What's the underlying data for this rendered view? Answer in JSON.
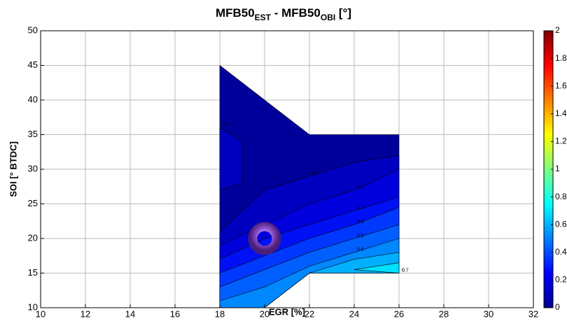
{
  "chart_data": {
    "type": "contourf",
    "title": [
      "MFB50",
      "EST",
      " - MFB50",
      "OBI",
      " [°]"
    ],
    "xlabel": "EGR [%]",
    "ylabel": "SOI [° BTDC]",
    "xlim": [
      10,
      32
    ],
    "ylim": [
      10,
      50
    ],
    "xticks": [
      10,
      12,
      14,
      16,
      18,
      20,
      22,
      24,
      26,
      28,
      30,
      32
    ],
    "yticks": [
      10,
      15,
      20,
      25,
      30,
      35,
      40,
      45,
      50
    ],
    "grid": true,
    "clim": [
      0,
      2
    ],
    "cticks": [
      0,
      0.2,
      0.4,
      0.6,
      0.8,
      1,
      1.2,
      1.4,
      1.6,
      1.8,
      2
    ],
    "colormap": [
      "#00008f",
      "#0000ff",
      "#0080ff",
      "#00ffff",
      "#80ff80",
      "#ffff00",
      "#ff8000",
      "#ff0000",
      "#800000"
    ],
    "contours": [
      {
        "level": 0,
        "color": "#00009a",
        "x": [
          18,
          22,
          26,
          26,
          22,
          20,
          18
        ],
        "y": [
          45,
          35,
          35,
          15,
          15,
          10,
          10
        ]
      },
      {
        "level": 0.1,
        "color": "#0000c0",
        "x": [
          18,
          19,
          19,
          18
        ],
        "y": [
          27,
          28,
          34,
          36
        ]
      },
      {
        "level": 0.1,
        "color": "#0000c0",
        "x": [
          18,
          19,
          20,
          22,
          24,
          26,
          26,
          22,
          20,
          18
        ],
        "y": [
          21,
          24,
          27,
          29,
          31,
          32,
          15,
          15,
          10,
          10
        ]
      },
      {
        "level": 0.2,
        "color": "#0000dc",
        "x": [
          18,
          20,
          22,
          24,
          26,
          26,
          22,
          20,
          18
        ],
        "y": [
          19,
          22,
          25,
          27,
          30,
          15,
          15,
          10,
          10
        ]
      },
      {
        "level": 0.3,
        "color": "#0010f4",
        "x": [
          18,
          20,
          22,
          24,
          26,
          26,
          22,
          20,
          18
        ],
        "y": [
          17,
          20,
          22,
          24,
          26,
          15,
          15,
          10,
          10
        ]
      },
      {
        "level": 0.4,
        "color": "#0038ff",
        "x": [
          18,
          20,
          22,
          24,
          26,
          26,
          22,
          20,
          18
        ],
        "y": [
          15,
          17.5,
          20,
          22,
          24.5,
          15,
          15,
          10,
          10
        ]
      },
      {
        "level": 0.5,
        "color": "#0060ff",
        "x": [
          18,
          20,
          22,
          24,
          26,
          26,
          22,
          20,
          18
        ],
        "y": [
          13,
          15.5,
          18,
          20,
          22,
          15,
          15,
          10,
          10
        ]
      },
      {
        "level": 0.6,
        "color": "#0088ff",
        "x": [
          18,
          20,
          22,
          24,
          26,
          26,
          22,
          20,
          18
        ],
        "y": [
          11,
          13,
          16,
          18,
          20,
          15,
          15,
          10,
          10
        ]
      },
      {
        "level": 0.7,
        "color": "#00b0ff",
        "x": [
          22,
          24,
          26,
          26
        ],
        "y": [
          15,
          17,
          18,
          15
        ]
      },
      {
        "level": 0.8,
        "color": "#00e0ff",
        "x": [
          24,
          26,
          26
        ],
        "y": [
          15.5,
          16.5,
          15
        ]
      }
    ],
    "point": {
      "x": 20,
      "y": 20
    }
  }
}
